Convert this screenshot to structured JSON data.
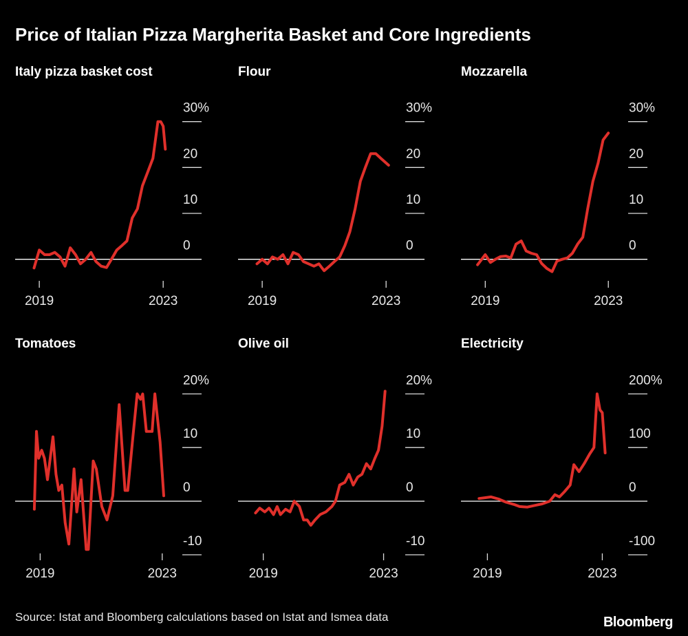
{
  "title": "Price of Italian Pizza Margherita Basket and Core Ingredients",
  "source": "Source: Istat and Bloomberg calculations based on Istat and Ismea data",
  "brand": "Bloomberg",
  "chart_data": [
    {
      "type": "line",
      "title": "Italy pizza basket cost",
      "color": "#e0302b",
      "x": [
        2018.83,
        2019,
        2019.17,
        2019.33,
        2019.5,
        2019.67,
        2019.83,
        2020,
        2020.17,
        2020.33,
        2020.5,
        2020.67,
        2020.83,
        2021,
        2021.17,
        2021.33,
        2021.5,
        2021.67,
        2021.83,
        2022,
        2022.17,
        2022.33,
        2022.5,
        2022.67,
        2022.83,
        2022.92,
        2023,
        2023.07
      ],
      "values": [
        -1.9,
        2,
        1,
        1,
        1.5,
        0.5,
        -1.5,
        2.5,
        1,
        -1,
        0,
        1.5,
        -0.5,
        -1.5,
        -1.8,
        0,
        2,
        3,
        4,
        9,
        11,
        16,
        19,
        22,
        30,
        30,
        29,
        24
      ],
      "xlim": [
        2018.22,
        2024.24
      ],
      "ylim": [
        -5,
        34
      ],
      "xticks": [
        2019,
        2023
      ],
      "yticks": [
        {
          "value": 30,
          "label": "30%"
        },
        20,
        10,
        0
      ]
    },
    {
      "type": "line",
      "title": "Flour",
      "color": "#e0302b",
      "x": [
        2018.83,
        2019,
        2019.17,
        2019.33,
        2019.5,
        2019.67,
        2019.83,
        2020,
        2020.17,
        2020.33,
        2020.5,
        2020.67,
        2020.83,
        2021,
        2021.17,
        2021.33,
        2021.5,
        2021.67,
        2021.83,
        2022,
        2022.17,
        2022.33,
        2022.5,
        2022.67,
        2022.83,
        2023.08
      ],
      "values": [
        -1,
        0,
        -1,
        0.5,
        0,
        1,
        -1,
        1.5,
        1,
        -0.5,
        -1,
        -1.5,
        -1,
        -2.5,
        -1.5,
        -0.5,
        0.5,
        3,
        6,
        11,
        17,
        20,
        23,
        23,
        22,
        20.5
      ],
      "xlim": [
        2018.22,
        2024.24
      ],
      "ylim": [
        -5,
        34
      ],
      "xticks": [
        2019,
        2023
      ],
      "yticks": [
        {
          "value": 30,
          "label": "30%"
        },
        20,
        10,
        0
      ]
    },
    {
      "type": "line",
      "title": "Mozzarella",
      "color": "#e0302b",
      "x": [
        2018.75,
        2019,
        2019.17,
        2019.33,
        2019.5,
        2019.67,
        2019.83,
        2020,
        2020.17,
        2020.33,
        2020.5,
        2020.67,
        2020.83,
        2021,
        2021.17,
        2021.33,
        2021.5,
        2021.67,
        2021.83,
        2022,
        2022.17,
        2022.33,
        2022.5,
        2022.67,
        2022.83,
        2023
      ],
      "values": [
        -1.2,
        1,
        -0.7,
        0,
        0.6,
        0.7,
        0.3,
        3.3,
        4,
        1.8,
        1.3,
        1,
        -0.9,
        -2,
        -2.7,
        -0.4,
        0,
        0.3,
        1.3,
        3.3,
        4.8,
        11,
        17,
        21,
        26,
        27.5
      ],
      "xlim": [
        2018.21,
        2024.27
      ],
      "ylim": [
        -5,
        34
      ],
      "xticks": [
        2019,
        2023
      ],
      "yticks": [
        {
          "value": 30,
          "label": "30%"
        },
        20,
        10,
        0
      ]
    },
    {
      "type": "line",
      "title": "Tomatoes",
      "color": "#e0302b",
      "x": [
        2018.81,
        2018.88,
        2018.95,
        2019.05,
        2019.14,
        2019.24,
        2019.42,
        2019.52,
        2019.61,
        2019.71,
        2019.82,
        2019.94,
        2020.11,
        2020.2,
        2020.34,
        2020.51,
        2020.58,
        2020.74,
        2020.84,
        2021.02,
        2021.19,
        2021.38,
        2021.59,
        2021.78,
        2021.87,
        2022.04,
        2022.18,
        2022.29,
        2022.36,
        2022.48,
        2022.67,
        2022.76,
        2022.93,
        2023.05
      ],
      "values": [
        -1.5,
        13,
        8,
        9.5,
        8,
        4,
        12,
        5,
        2,
        3,
        -4,
        -8,
        6,
        -2,
        4,
        -9,
        -9,
        7.5,
        6,
        -1,
        -3.5,
        1,
        18,
        2,
        2,
        12,
        20,
        19,
        20,
        13,
        13,
        20,
        11,
        1
      ],
      "xlim": [
        2018.18,
        2024.29
      ],
      "ylim": [
        -10,
        23.5
      ],
      "xticks": [
        2019,
        2023
      ],
      "yticks": [
        {
          "value": 20,
          "label": "20%"
        },
        10,
        0,
        -10
      ]
    },
    {
      "type": "line",
      "title": "Olive oil",
      "color": "#e0302b",
      "x": [
        2018.74,
        2018.88,
        2019.05,
        2019.19,
        2019.34,
        2019.46,
        2019.57,
        2019.74,
        2019.89,
        2020.03,
        2020.2,
        2020.34,
        2020.46,
        2020.58,
        2020.72,
        2020.89,
        2021.08,
        2021.28,
        2021.4,
        2021.54,
        2021.71,
        2021.85,
        2021.99,
        2022.14,
        2022.28,
        2022.43,
        2022.57,
        2022.71,
        2022.83,
        2022.95,
        2023.05
      ],
      "values": [
        -2.2,
        -1.3,
        -2,
        -1.3,
        -2.5,
        -1,
        -2.5,
        -1.5,
        -2,
        0,
        -1,
        -3.5,
        -3.5,
        -4.5,
        -3.5,
        -2.5,
        -2,
        -1,
        0,
        3,
        3.5,
        5,
        3,
        4.5,
        5,
        7,
        6,
        8,
        9.5,
        14,
        20.5
      ],
      "xlim": [
        2018.16,
        2024.36
      ],
      "ylim": [
        -10,
        23.5
      ],
      "xticks": [
        2019,
        2023
      ],
      "yticks": [
        {
          "value": 20,
          "label": "20%"
        },
        10,
        0,
        -10
      ]
    },
    {
      "type": "line",
      "title": "Electricity",
      "color": "#e0302b",
      "x": [
        2018.71,
        2018.87,
        2019.13,
        2019.39,
        2019.65,
        2019.92,
        2020.12,
        2020.39,
        2020.65,
        2020.91,
        2021.17,
        2021.35,
        2021.51,
        2021.69,
        2021.88,
        2022.01,
        2022.19,
        2022.37,
        2022.56,
        2022.71,
        2022.82,
        2022.92,
        2023,
        2023.1
      ],
      "values": [
        5,
        6,
        8,
        4,
        -2,
        -6,
        -10,
        -11,
        -8,
        -5,
        0,
        12,
        8,
        18,
        30,
        68,
        55,
        70,
        88,
        100,
        200,
        170,
        165,
        90
      ],
      "xlim": [
        2018.08,
        2024.57
      ],
      "ylim": [
        -100,
        235
      ],
      "xticks": [
        2019,
        2023
      ],
      "yticks": [
        {
          "value": 200,
          "label": "200%"
        },
        100,
        0,
        -100
      ]
    }
  ]
}
